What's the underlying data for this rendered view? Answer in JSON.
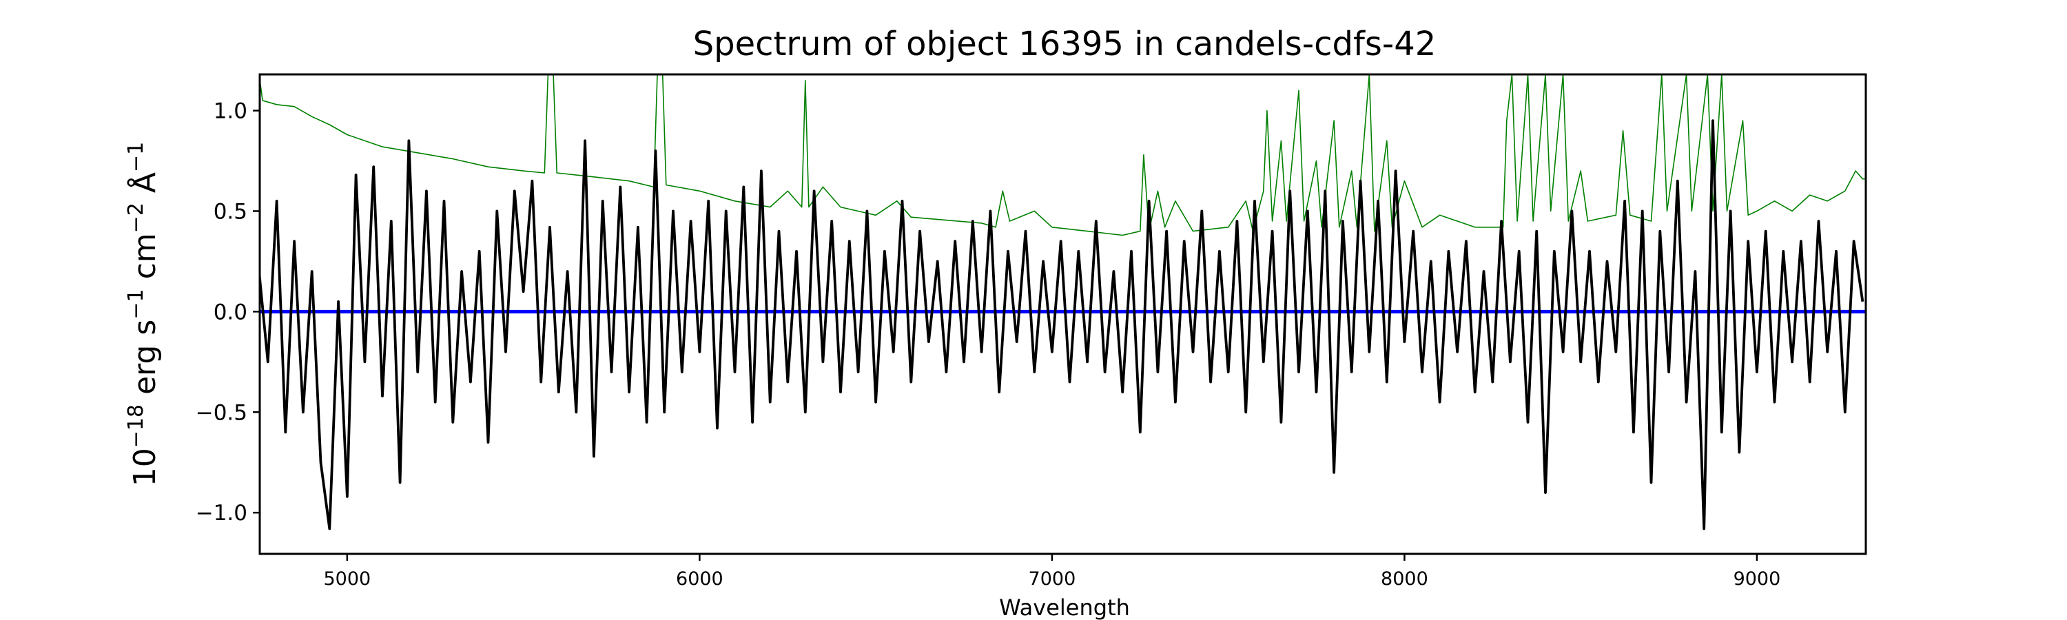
{
  "chart_data": {
    "type": "line",
    "title": "Spectrum of object 16395 in candels-cdfs-42",
    "xlabel": "Wavelength",
    "ylabel": {
      "base": "10",
      "exp1": "−18",
      "erg": " erg s",
      "exp2": "−1",
      "cm": " cm",
      "exp3": "−2",
      "ang": " Å",
      "exp4": "−1"
    },
    "xlim": [
      4752,
      9309
    ],
    "ylim": [
      -1.205,
      1.18
    ],
    "xticks": [
      {
        "v": 5000,
        "label": "5000"
      },
      {
        "v": 6000,
        "label": "6000"
      },
      {
        "v": 7000,
        "label": "7000"
      },
      {
        "v": 8000,
        "label": "8000"
      },
      {
        "v": 9000,
        "label": "9000"
      }
    ],
    "yticks": [
      {
        "v": -1.0,
        "label": "−1.0"
      },
      {
        "v": -0.5,
        "label": "−0.5"
      },
      {
        "v": 0.0,
        "label": "0.0"
      },
      {
        "v": 0.5,
        "label": "0.5"
      },
      {
        "v": 1.0,
        "label": "1.0"
      }
    ],
    "grid": false,
    "series": [
      {
        "role": "error",
        "color": "#008000",
        "points": [
          [
            4750,
            1.18
          ],
          [
            4760,
            1.05
          ],
          [
            4800,
            1.03
          ],
          [
            4850,
            1.02
          ],
          [
            4900,
            0.97
          ],
          [
            4950,
            0.93
          ],
          [
            5000,
            0.88
          ],
          [
            5100,
            0.82
          ],
          [
            5200,
            0.79
          ],
          [
            5300,
            0.76
          ],
          [
            5400,
            0.72
          ],
          [
            5500,
            0.7
          ],
          [
            5560,
            0.69
          ],
          [
            5570,
            1.18
          ],
          [
            5585,
            1.18
          ],
          [
            5595,
            0.69
          ],
          [
            5700,
            0.67
          ],
          [
            5800,
            0.65
          ],
          [
            5870,
            0.62
          ],
          [
            5880,
            1.18
          ],
          [
            5895,
            1.18
          ],
          [
            5905,
            0.63
          ],
          [
            6000,
            0.6
          ],
          [
            6100,
            0.55
          ],
          [
            6200,
            0.52
          ],
          [
            6250,
            0.6
          ],
          [
            6290,
            0.52
          ],
          [
            6300,
            1.15
          ],
          [
            6310,
            0.52
          ],
          [
            6350,
            0.62
          ],
          [
            6400,
            0.52
          ],
          [
            6500,
            0.48
          ],
          [
            6560,
            0.55
          ],
          [
            6600,
            0.47
          ],
          [
            6800,
            0.44
          ],
          [
            6840,
            0.42
          ],
          [
            6860,
            0.6
          ],
          [
            6880,
            0.45
          ],
          [
            6950,
            0.5
          ],
          [
            7000,
            0.42
          ],
          [
            7100,
            0.4
          ],
          [
            7200,
            0.38
          ],
          [
            7250,
            0.4
          ],
          [
            7260,
            0.78
          ],
          [
            7275,
            0.4
          ],
          [
            7300,
            0.6
          ],
          [
            7320,
            0.42
          ],
          [
            7350,
            0.55
          ],
          [
            7400,
            0.4
          ],
          [
            7500,
            0.42
          ],
          [
            7550,
            0.55
          ],
          [
            7570,
            0.4
          ],
          [
            7600,
            0.6
          ],
          [
            7610,
            1.0
          ],
          [
            7625,
            0.45
          ],
          [
            7650,
            0.85
          ],
          [
            7665,
            0.45
          ],
          [
            7700,
            1.1
          ],
          [
            7715,
            0.45
          ],
          [
            7750,
            0.75
          ],
          [
            7765,
            0.42
          ],
          [
            7800,
            0.95
          ],
          [
            7815,
            0.42
          ],
          [
            7850,
            0.7
          ],
          [
            7865,
            0.42
          ],
          [
            7900,
            1.18
          ],
          [
            7915,
            0.4
          ],
          [
            7950,
            0.85
          ],
          [
            7965,
            0.42
          ],
          [
            8000,
            0.65
          ],
          [
            8050,
            0.42
          ],
          [
            8100,
            0.48
          ],
          [
            8200,
            0.42
          ],
          [
            8280,
            0.42
          ],
          [
            8290,
            0.95
          ],
          [
            8305,
            1.18
          ],
          [
            8320,
            0.45
          ],
          [
            8350,
            1.18
          ],
          [
            8365,
            0.45
          ],
          [
            8400,
            1.18
          ],
          [
            8415,
            0.5
          ],
          [
            8450,
            1.18
          ],
          [
            8465,
            0.45
          ],
          [
            8500,
            0.7
          ],
          [
            8520,
            0.45
          ],
          [
            8600,
            0.48
          ],
          [
            8620,
            0.9
          ],
          [
            8640,
            0.48
          ],
          [
            8700,
            0.45
          ],
          [
            8730,
            1.18
          ],
          [
            8745,
            0.5
          ],
          [
            8800,
            1.18
          ],
          [
            8815,
            0.5
          ],
          [
            8860,
            1.18
          ],
          [
            8875,
            0.5
          ],
          [
            8900,
            1.18
          ],
          [
            8915,
            0.5
          ],
          [
            8960,
            0.95
          ],
          [
            8975,
            0.48
          ],
          [
            9000,
            0.5
          ],
          [
            9050,
            0.55
          ],
          [
            9100,
            0.5
          ],
          [
            9150,
            0.58
          ],
          [
            9200,
            0.55
          ],
          [
            9250,
            0.6
          ],
          [
            9280,
            0.7
          ],
          [
            9300,
            0.66
          ],
          [
            9310,
            0.66
          ]
        ]
      },
      {
        "role": "model",
        "color": "#0000ff",
        "points": [
          [
            4750,
            0
          ],
          [
            9310,
            0
          ]
        ]
      },
      {
        "role": "flux",
        "color": "#000000",
        "x_start": 4750,
        "x_step": 25,
        "values": [
          0.2,
          -0.25,
          0.55,
          -0.6,
          0.35,
          -0.5,
          0.2,
          -0.75,
          -1.08,
          0.05,
          -0.92,
          0.68,
          -0.25,
          0.72,
          -0.42,
          0.45,
          -0.85,
          0.85,
          -0.3,
          0.6,
          -0.45,
          0.55,
          -0.55,
          0.2,
          -0.35,
          0.3,
          -0.65,
          0.5,
          -0.2,
          0.6,
          0.1,
          0.65,
          -0.35,
          0.42,
          -0.4,
          0.2,
          -0.5,
          0.85,
          -0.72,
          0.55,
          -0.3,
          0.62,
          -0.4,
          0.42,
          -0.55,
          0.8,
          -0.5,
          0.5,
          -0.3,
          0.45,
          -0.2,
          0.55,
          -0.58,
          0.5,
          -0.3,
          0.62,
          -0.55,
          0.7,
          -0.45,
          0.4,
          -0.35,
          0.3,
          -0.5,
          0.6,
          -0.25,
          0.45,
          -0.4,
          0.35,
          -0.3,
          0.5,
          -0.45,
          0.3,
          -0.2,
          0.55,
          -0.35,
          0.4,
          -0.15,
          0.25,
          -0.3,
          0.35,
          -0.25,
          0.45,
          -0.2,
          0.5,
          -0.4,
          0.3,
          -0.15,
          0.4,
          -0.3,
          0.25,
          -0.2,
          0.35,
          -0.35,
          0.3,
          -0.25,
          0.45,
          -0.3,
          0.2,
          -0.4,
          0.3,
          -0.6,
          0.55,
          -0.3,
          0.4,
          -0.45,
          0.35,
          -0.2,
          0.5,
          -0.35,
          0.3,
          -0.3,
          0.45,
          -0.5,
          0.55,
          -0.25,
          0.4,
          -0.55,
          0.6,
          -0.3,
          0.5,
          -0.4,
          0.6,
          -0.8,
          0.45,
          -0.3,
          0.65,
          -0.2,
          0.55,
          -0.35,
          0.7,
          -0.15,
          0.4,
          -0.3,
          0.25,
          -0.45,
          0.3,
          -0.2,
          0.35,
          -0.4,
          0.2,
          -0.35,
          0.45,
          -0.25,
          0.3,
          -0.55,
          0.4,
          -0.9,
          0.3,
          -0.2,
          0.5,
          -0.25,
          0.3,
          -0.35,
          0.25,
          -0.2,
          0.55,
          -0.6,
          0.5,
          -0.85,
          0.4,
          -0.3,
          0.65,
          -0.45,
          0.2,
          -1.08,
          0.95,
          -0.6,
          0.5,
          -0.7,
          0.35,
          -0.3,
          0.4,
          -0.45,
          0.3,
          -0.25,
          0.35,
          -0.35,
          0.45,
          -0.2,
          0.3,
          -0.5,
          0.35,
          0.05
        ]
      }
    ]
  }
}
